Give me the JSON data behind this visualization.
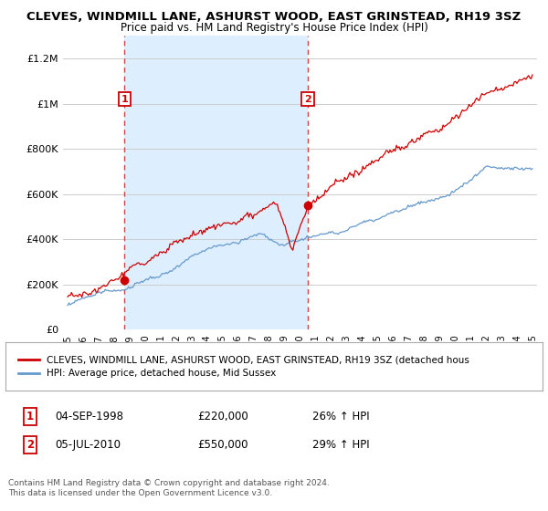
{
  "title": "CLEVES, WINDMILL LANE, ASHURST WOOD, EAST GRINSTEAD, RH19 3SZ",
  "subtitle": "Price paid vs. HM Land Registry's House Price Index (HPI)",
  "ylim": [
    0,
    1300000
  ],
  "yticks": [
    0,
    200000,
    400000,
    600000,
    800000,
    1000000,
    1200000
  ],
  "x_start_year": 1995,
  "x_end_year": 2025,
  "sale1_year": 1998.67,
  "sale1_price": 220000,
  "sale1_label": "1",
  "sale1_date": "04-SEP-1998",
  "sale1_hpi_pct": "26%",
  "sale2_year": 2010.5,
  "sale2_price": 550000,
  "sale2_label": "2",
  "sale2_date": "05-JUL-2010",
  "sale2_hpi_pct": "29%",
  "line_color_property": "#cc0000",
  "line_color_hpi": "#6699cc",
  "vline_color": "#cc4444",
  "shade_color": "#ddeeff",
  "background_color": "#ffffff",
  "grid_color": "#cccccc",
  "legend_label_property": "CLEVES, WINDMILL LANE, ASHURST WOOD, EAST GRINSTEAD, RH19 3SZ (detached hous",
  "legend_label_hpi": "HPI: Average price, detached house, Mid Sussex",
  "footer": "Contains HM Land Registry data © Crown copyright and database right 2024.\nThis data is licensed under the Open Government Licence v3.0."
}
